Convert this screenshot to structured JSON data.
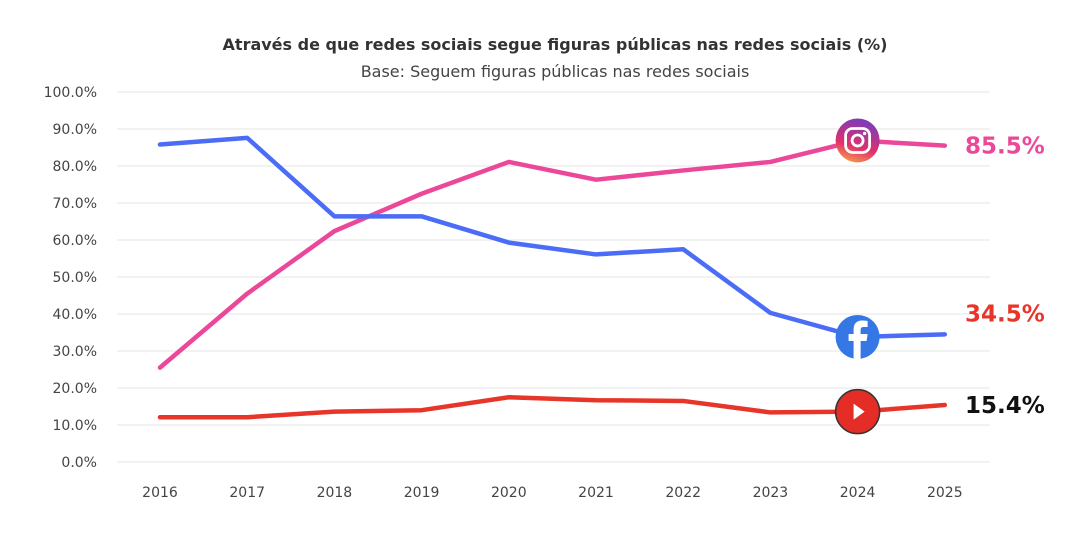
{
  "chart_data": {
    "type": "line",
    "title": "Através de que redes sociais segue  figuras públicas nas redes sociais (%)",
    "subtitle": "Base: Seguem figuras públicas nas redes sociais",
    "xlabel": "",
    "ylabel": "",
    "ylim": [
      0,
      100
    ],
    "grid": true,
    "x": [
      "2016",
      "2017",
      "2018",
      "2019",
      "2020",
      "2021",
      "2022",
      "2023",
      "2024",
      "2025"
    ],
    "yticks": [
      "0.0%",
      "10.0%",
      "20.0%",
      "30.0%",
      "40.0%",
      "50.0%",
      "60.0%",
      "70.0%",
      "80.0%",
      "90.0%",
      "100.0%"
    ],
    "series": [
      {
        "icon": "instagram-icon",
        "color": "#ec4899",
        "values": [
          25.5,
          45.5,
          62.4,
          72.5,
          81.1,
          76.3,
          78.8,
          81.1,
          86.9,
          85.5
        ],
        "end_label": "85.5%",
        "end_label_color": "#ec4899"
      },
      {
        "icon": "facebook-icon",
        "color": "#4a6cf7",
        "values": [
          85.8,
          87.6,
          66.4,
          66.4,
          59.3,
          56.1,
          57.5,
          40.3,
          33.8,
          34.5
        ],
        "end_label": "34.5%",
        "end_label_color": "#e8352a"
      },
      {
        "icon": "youtube-icon",
        "color": "#e8352a",
        "values": [
          12.1,
          12.1,
          13.6,
          14.0,
          17.5,
          16.7,
          16.5,
          13.4,
          13.6,
          15.4
        ],
        "end_label": "15.4%",
        "end_label_color": "#111111"
      }
    ]
  }
}
